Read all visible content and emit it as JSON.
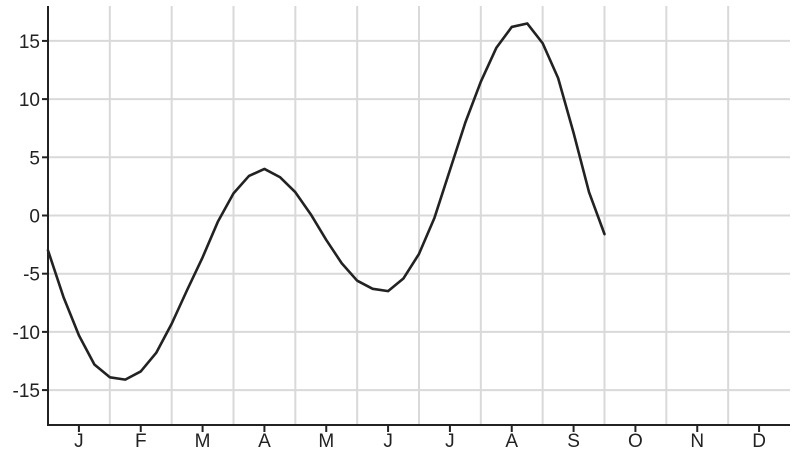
{
  "chart_data": {
    "type": "line",
    "x": [
      "J",
      "F",
      "M",
      "A",
      "M",
      "J",
      "J",
      "A",
      "S",
      "O",
      "N",
      "D"
    ],
    "y_ticks": [
      15,
      10,
      5,
      0,
      -5,
      -10,
      -15
    ],
    "xlim": [
      0.5,
      12.5
    ],
    "ylim": [
      -18,
      18
    ],
    "grid": true,
    "legend": "none",
    "series": [
      {
        "values": [
          [
            0.5,
            -3.0
          ],
          [
            0.75,
            -7.0
          ],
          [
            1.0,
            -10.3
          ],
          [
            1.25,
            -12.8
          ],
          [
            1.5,
            -13.9
          ],
          [
            1.75,
            -14.1
          ],
          [
            2.0,
            -13.4
          ],
          [
            2.25,
            -11.8
          ],
          [
            2.5,
            -9.3
          ],
          [
            2.75,
            -6.4
          ],
          [
            3.0,
            -3.6
          ],
          [
            3.25,
            -0.5
          ],
          [
            3.5,
            1.9
          ],
          [
            3.75,
            3.4
          ],
          [
            4.0,
            4.0
          ],
          [
            4.25,
            3.3
          ],
          [
            4.5,
            2.0
          ],
          [
            4.75,
            0.1
          ],
          [
            5.0,
            -2.1
          ],
          [
            5.25,
            -4.1
          ],
          [
            5.5,
            -5.6
          ],
          [
            5.75,
            -6.3
          ],
          [
            6.0,
            -6.5
          ],
          [
            6.25,
            -5.4
          ],
          [
            6.5,
            -3.3
          ],
          [
            6.75,
            -0.2
          ],
          [
            7.0,
            3.9
          ],
          [
            7.25,
            8.0
          ],
          [
            7.5,
            11.5
          ],
          [
            7.75,
            14.4
          ],
          [
            8.0,
            16.2
          ],
          [
            8.25,
            16.5
          ],
          [
            8.5,
            14.8
          ],
          [
            8.75,
            11.8
          ],
          [
            9.0,
            7.1
          ],
          [
            9.25,
            2.0
          ],
          [
            9.5,
            -1.6
          ]
        ]
      }
    ],
    "colors": {
      "line": "#222222",
      "grid": "#d9d9d9",
      "axis": "#222222",
      "background": "#ffffff"
    }
  }
}
